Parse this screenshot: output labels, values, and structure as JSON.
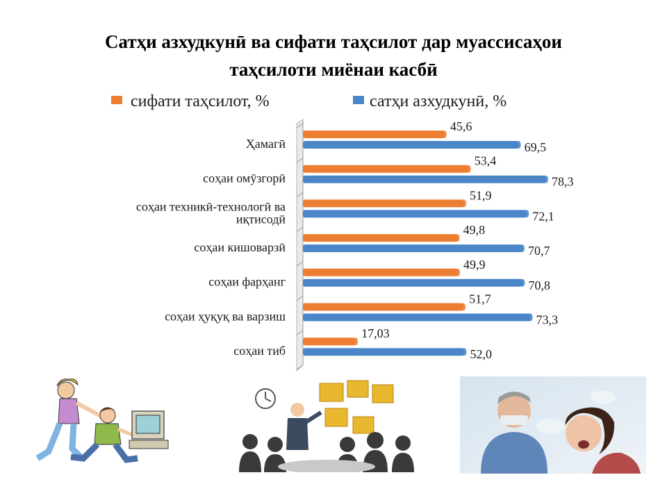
{
  "title_lines": [
    "Сатҳи азхудкунӣ ва сифати таҳсилот дар муассисаҳои",
    "таҳсилоти миёнаи касбӣ"
  ],
  "colors": {
    "orange": "#ED7D31",
    "blue": "#4A86C8"
  },
  "chart_data": {
    "type": "bar",
    "orientation": "horizontal",
    "legend_position": "top",
    "xlim": [
      0,
      100
    ],
    "categories": [
      "Ҳамагӣ",
      "соҳаи омӯзгорӣ",
      "соҳаи техникӣ-технологӣ ва иқтисодӣ",
      "соҳаи кишоварзӣ",
      "соҳаи фарҳанг",
      "соҳаи ҳуқуқ ва варзиш",
      "соҳаи тиб"
    ],
    "category_lines": [
      [
        "Ҳамагӣ"
      ],
      [
        "соҳаи омӯзгорӣ"
      ],
      [
        "соҳаи техникӣ-технологӣ ва",
        "иқтисодӣ"
      ],
      [
        "соҳаи кишоварзӣ"
      ],
      [
        "соҳаи фарҳанг"
      ],
      [
        "соҳаи ҳуқуқ ва варзиш"
      ],
      [
        "соҳаи тиб"
      ]
    ],
    "series": [
      {
        "name": "сифати таҳсилот, %",
        "color": "#ED7D31",
        "values": [
          45.6,
          53.4,
          51.9,
          49.8,
          49.9,
          51.7,
          17.03
        ],
        "labels": [
          "45,6",
          "53,4",
          "51,9",
          "49,8",
          "49,9",
          "51,7",
          "17,03"
        ]
      },
      {
        "name": "сатҳи азхудкунӣ, %",
        "color": "#4A86C8",
        "values": [
          69.5,
          78.3,
          72.1,
          70.7,
          70.8,
          73.3,
          52.0
        ],
        "labels": [
          "69,5",
          "78,3",
          "72,1",
          "70,7",
          "70,8",
          "73,3",
          "52,0"
        ]
      }
    ]
  },
  "illustrations": [
    "children-at-computer-clipart",
    "business-meeting-silhouettes",
    "dentist-photo"
  ]
}
